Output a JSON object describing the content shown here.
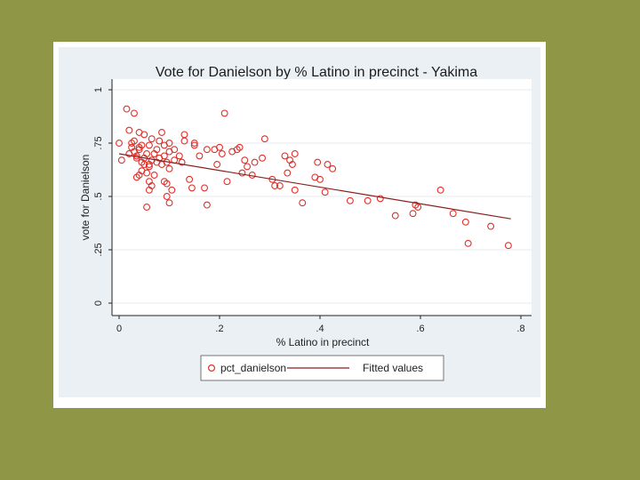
{
  "chart_data": {
    "type": "scatter",
    "title": "Vote for Danielson by % Latino in precinct - Yakima",
    "xlabel": "% Latino in precinct",
    "ylabel": "vote for Danielson",
    "xlim": [
      0,
      0.8
    ],
    "ylim": [
      0,
      1
    ],
    "x_ticks": [
      {
        "value": 0,
        "label": "0"
      },
      {
        "value": 0.2,
        "label": ".2"
      },
      {
        "value": 0.4,
        "label": ".4"
      },
      {
        "value": 0.6,
        "label": ".6"
      },
      {
        "value": 0.8,
        "label": ".8"
      }
    ],
    "y_ticks": [
      {
        "value": 0,
        "label": "0"
      },
      {
        "value": 0.25,
        "label": ".25"
      },
      {
        "value": 0.5,
        "label": ".5"
      },
      {
        "value": 0.75,
        "label": ".75"
      },
      {
        "value": 1,
        "label": "1"
      }
    ],
    "grid": true,
    "legend_position": "bottom",
    "series": [
      {
        "name": "pct_danielson",
        "marker": "hollow-circle",
        "color": "#e0302a",
        "points": [
          [
            0.0,
            0.75
          ],
          [
            0.005,
            0.67
          ],
          [
            0.015,
            0.91
          ],
          [
            0.02,
            0.7
          ],
          [
            0.025,
            0.73
          ],
          [
            0.03,
            0.89
          ],
          [
            0.03,
            0.76
          ],
          [
            0.035,
            0.69
          ],
          [
            0.04,
            0.8
          ],
          [
            0.04,
            0.72
          ],
          [
            0.045,
            0.66
          ],
          [
            0.05,
            0.68
          ],
          [
            0.02,
            0.81
          ],
          [
            0.035,
            0.68
          ],
          [
            0.025,
            0.75
          ],
          [
            0.03,
            0.71
          ],
          [
            0.045,
            0.74
          ],
          [
            0.05,
            0.79
          ],
          [
            0.055,
            0.7
          ],
          [
            0.06,
            0.65
          ],
          [
            0.035,
            0.59
          ],
          [
            0.04,
            0.6
          ],
          [
            0.045,
            0.62
          ],
          [
            0.055,
            0.61
          ],
          [
            0.06,
            0.64
          ],
          [
            0.065,
            0.67
          ],
          [
            0.07,
            0.7
          ],
          [
            0.06,
            0.57
          ],
          [
            0.065,
            0.55
          ],
          [
            0.06,
            0.53
          ],
          [
            0.07,
            0.6
          ],
          [
            0.055,
            0.45
          ],
          [
            0.075,
            0.72
          ],
          [
            0.08,
            0.76
          ],
          [
            0.08,
            0.68
          ],
          [
            0.085,
            0.65
          ],
          [
            0.09,
            0.69
          ],
          [
            0.09,
            0.74
          ],
          [
            0.095,
            0.66
          ],
          [
            0.1,
            0.71
          ],
          [
            0.1,
            0.63
          ],
          [
            0.075,
            0.66
          ],
          [
            0.09,
            0.57
          ],
          [
            0.095,
            0.5
          ],
          [
            0.1,
            0.47
          ],
          [
            0.105,
            0.53
          ],
          [
            0.095,
            0.56
          ],
          [
            0.11,
            0.67
          ],
          [
            0.11,
            0.72
          ],
          [
            0.085,
            0.8
          ],
          [
            0.05,
            0.65
          ],
          [
            0.06,
            0.74
          ],
          [
            0.04,
            0.73
          ],
          [
            0.065,
            0.77
          ],
          [
            0.1,
            0.75
          ],
          [
            0.12,
            0.69
          ],
          [
            0.125,
            0.66
          ],
          [
            0.13,
            0.76
          ],
          [
            0.13,
            0.79
          ],
          [
            0.14,
            0.58
          ],
          [
            0.145,
            0.54
          ],
          [
            0.15,
            0.74
          ],
          [
            0.15,
            0.75
          ],
          [
            0.16,
            0.69
          ],
          [
            0.17,
            0.54
          ],
          [
            0.175,
            0.46
          ],
          [
            0.175,
            0.72
          ],
          [
            0.19,
            0.72
          ],
          [
            0.195,
            0.65
          ],
          [
            0.2,
            0.73
          ],
          [
            0.205,
            0.7
          ],
          [
            0.21,
            0.89
          ],
          [
            0.215,
            0.57
          ],
          [
            0.225,
            0.71
          ],
          [
            0.235,
            0.72
          ],
          [
            0.24,
            0.73
          ],
          [
            0.245,
            0.61
          ],
          [
            0.25,
            0.67
          ],
          [
            0.255,
            0.64
          ],
          [
            0.265,
            0.6
          ],
          [
            0.27,
            0.66
          ],
          [
            0.285,
            0.68
          ],
          [
            0.29,
            0.77
          ],
          [
            0.305,
            0.58
          ],
          [
            0.31,
            0.55
          ],
          [
            0.32,
            0.55
          ],
          [
            0.33,
            0.69
          ],
          [
            0.335,
            0.61
          ],
          [
            0.34,
            0.67
          ],
          [
            0.345,
            0.65
          ],
          [
            0.35,
            0.7
          ],
          [
            0.35,
            0.53
          ],
          [
            0.365,
            0.47
          ],
          [
            0.39,
            0.59
          ],
          [
            0.395,
            0.66
          ],
          [
            0.4,
            0.58
          ],
          [
            0.41,
            0.52
          ],
          [
            0.415,
            0.65
          ],
          [
            0.425,
            0.63
          ],
          [
            0.46,
            0.48
          ],
          [
            0.495,
            0.48
          ],
          [
            0.52,
            0.49
          ],
          [
            0.55,
            0.41
          ],
          [
            0.585,
            0.42
          ],
          [
            0.59,
            0.46
          ],
          [
            0.595,
            0.45
          ],
          [
            0.64,
            0.53
          ],
          [
            0.665,
            0.42
          ],
          [
            0.69,
            0.38
          ],
          [
            0.695,
            0.28
          ],
          [
            0.74,
            0.36
          ],
          [
            0.775,
            0.27
          ]
        ]
      },
      {
        "name": "Fitted values",
        "marker": "line",
        "color": "#8b1f1f",
        "line": [
          [
            0.0,
            0.7
          ],
          [
            0.78,
            0.395
          ]
        ]
      }
    ]
  }
}
